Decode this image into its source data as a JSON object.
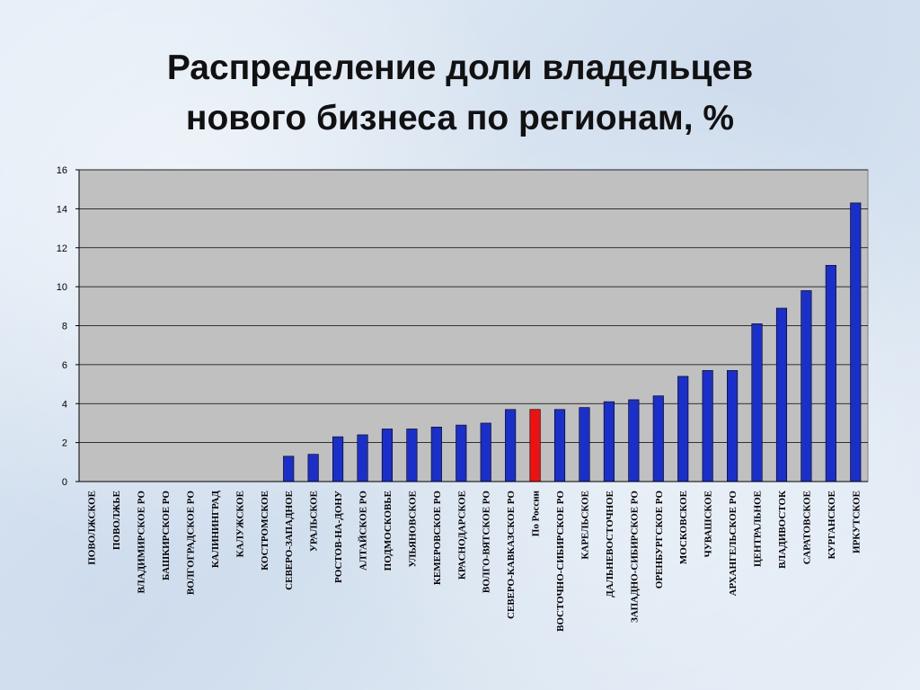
{
  "title_line1": "Распределение доли владельцев",
  "title_line2": "нового бизнеса по регионам, %",
  "chart_data": {
    "type": "bar",
    "title": "Распределение доли владельцев нового бизнеса по регионам, %",
    "categories": [
      "ПОВОЛЖСКОЕ",
      "ПОВОЛЖЬЕ",
      "ВЛАДИМИРСКОЕ РО",
      "БАШКИРСКОЕ РО",
      "ВОЛГОГРАДСКОЕ РО",
      "КАЛИНИНГРАД",
      "КАЛУЖСКОЕ",
      "КОСТРОМСКОЕ",
      "СЕВЕРО-ЗАПАДНОЕ",
      "УРАЛЬСКОЕ",
      "РОСТОВ-НА-ДОНУ",
      "АЛТАЙСКОЕ РО",
      "ПОДМОСКОВЬЕ",
      "УЛЬЯНОВСКОЕ",
      "КЕМЕРОВСКОЕ РО",
      "КРАСНОДАРСКОЕ",
      "ВОЛГО-ВЯТСКОЕ РО",
      "СЕВЕРО-КАВКАЗСКОЕ РО",
      "По России",
      "ВОСТОЧНО-СИБИРСКОЕ РО",
      "КАРЕЛЬСКОЕ",
      "ДАЛЬНЕВОСТОЧНОЕ",
      "ЗАПАДНО-СИБИРСКОЕ РО",
      "ОРЕНБУРГСКОЕ РО",
      "МОСКОВСКОЕ",
      "ЧУВАШСКОЕ",
      "АРХАНГЕЛЬСКОЕ РО",
      "ЦЕНТРАЛЬНОЕ",
      "ВЛАДИВОСТОК",
      "САРАТОВСКОЕ",
      "КУРГАНСКОЕ",
      "ИРКУТСКОЕ"
    ],
    "values": [
      0,
      0,
      0,
      0,
      0,
      0,
      0,
      0,
      1.3,
      1.4,
      2.3,
      2.4,
      2.7,
      2.7,
      2.8,
      2.9,
      3.0,
      3.7,
      3.7,
      3.7,
      3.8,
      4.1,
      4.2,
      4.4,
      5.4,
      5.7,
      5.7,
      8.1,
      8.9,
      9.8,
      11.1,
      14.3
    ],
    "highlight_category": "По России",
    "y_ticks": [
      "0",
      "2",
      "4",
      "6",
      "8",
      "10",
      "12",
      "14",
      "16"
    ],
    "ylim": [
      0,
      16
    ],
    "ytick_step": 2,
    "xlabel": "",
    "ylabel": "",
    "grid": true,
    "legend": "none",
    "colors": {
      "bar": "#1a2fc9",
      "bar_stroke": "#000000",
      "highlight_bar": "#ee1111",
      "plot_background": "#c0c0c0",
      "gridline": "#000000"
    }
  }
}
